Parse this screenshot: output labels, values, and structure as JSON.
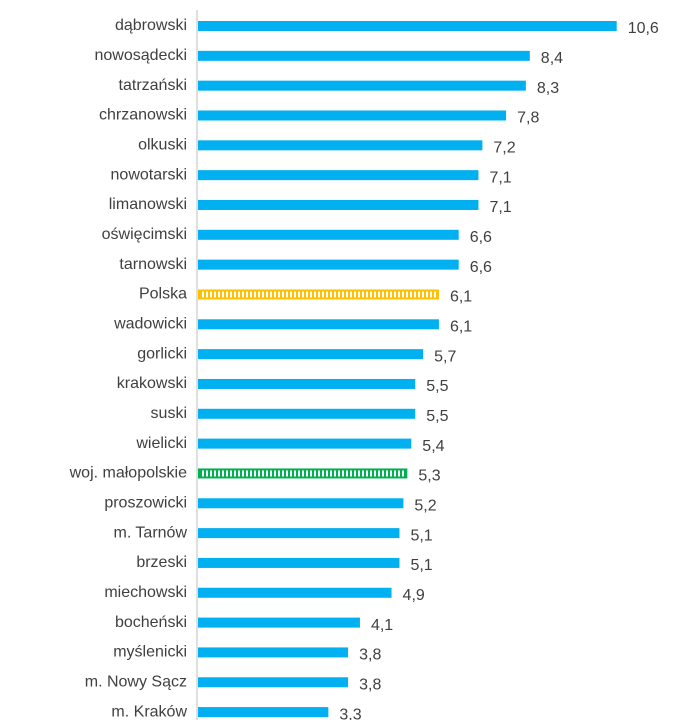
{
  "chart_data": {
    "type": "hbar",
    "categories": [
      "dąbrowski",
      "nowosądecki",
      "tatrzański",
      "chrzanowski",
      "olkuski",
      "nowotarski",
      "limanowski",
      "oświęcimski",
      "tarnowski",
      "Polska",
      "wadowicki",
      "gorlicki",
      "krakowski",
      "suski",
      "wielicki",
      "woj. małopolskie",
      "proszowicki",
      "m. Tarnów",
      "brzeski",
      "miechowski",
      "bocheński",
      "myślenicki",
      "m. Nowy Sącz",
      "m. Kraków"
    ],
    "values": [
      10.6,
      8.4,
      8.3,
      7.8,
      7.2,
      7.1,
      7.1,
      6.6,
      6.6,
      6.1,
      6.1,
      5.7,
      5.5,
      5.5,
      5.4,
      5.3,
      5.2,
      5.1,
      5.1,
      4.9,
      4.1,
      3.8,
      3.8,
      3.3
    ],
    "value_labels": [
      "10,6",
      "8,4",
      "8,3",
      "7,8",
      "7,2",
      "7,1",
      "7,1",
      "6,6",
      "6,6",
      "6,1",
      "6,1",
      "5,7",
      "5,5",
      "5,5",
      "5,4",
      "5,3",
      "5,2",
      "5,1",
      "5,1",
      "4,9",
      "4,1",
      "3,8",
      "3,8",
      "3,3"
    ],
    "colors": [
      "#00b0f0",
      "#00b0f0",
      "#00b0f0",
      "#00b0f0",
      "#00b0f0",
      "#00b0f0",
      "#00b0f0",
      "#00b0f0",
      "#00b0f0",
      "#ffc000",
      "#00b0f0",
      "#00b0f0",
      "#00b0f0",
      "#00b0f0",
      "#00b0f0",
      "#00b050",
      "#00b0f0",
      "#00b0f0",
      "#00b0f0",
      "#00b0f0",
      "#00b0f0",
      "#00b0f0",
      "#00b0f0",
      "#00b0f0"
    ],
    "hatched": [
      false,
      false,
      false,
      false,
      false,
      false,
      false,
      false,
      false,
      true,
      false,
      false,
      false,
      false,
      false,
      true,
      false,
      false,
      false,
      false,
      false,
      false,
      false,
      false
    ]
  }
}
